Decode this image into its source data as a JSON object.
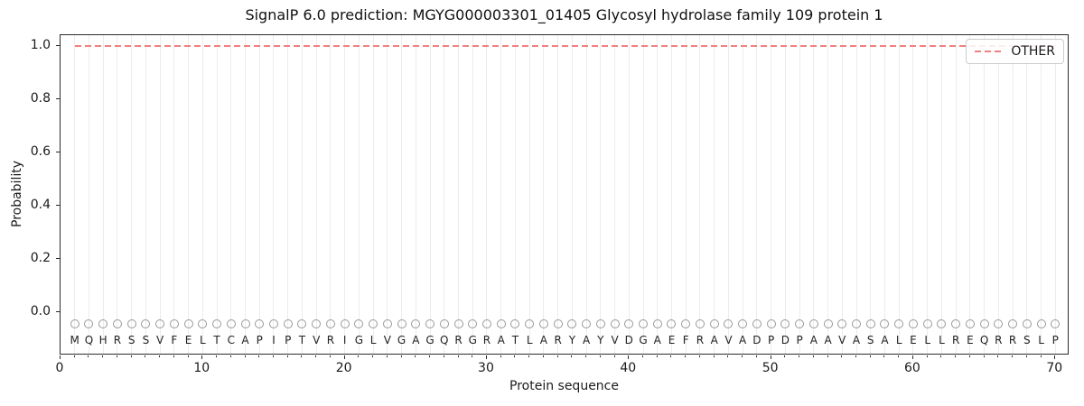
{
  "title": "SignalP 6.0 prediction: MGYG000003301_01405 Glycosyl hydrolase family 109 protein 1",
  "colors": {
    "line": "#f08080",
    "marker": "#999999",
    "letter": "#222222",
    "gridline": "#ececec",
    "spine": "#2b2b2b",
    "text": "#1a1a1a",
    "legend_border": "#cccccc"
  },
  "chart_data": {
    "type": "line",
    "title": "SignalP 6.0 prediction: MGYG000003301_01405 Glycosyl hydrolase family 109 protein 1",
    "xlabel": "Protein sequence",
    "ylabel": "Probability",
    "xlim": [
      0,
      71
    ],
    "ylim": [
      -0.16,
      1.04
    ],
    "x_ticks": [
      0,
      10,
      20,
      30,
      40,
      50,
      60,
      70
    ],
    "y_ticks": [
      0.0,
      0.2,
      0.4,
      0.6,
      0.8,
      1.0
    ],
    "grid": {
      "vertical_per_residue": true,
      "horizontal": false
    },
    "legend": {
      "position": "upper right",
      "entries": [
        "OTHER"
      ]
    },
    "series": [
      {
        "name": "OTHER",
        "line_style": "dashed",
        "color": "#f08080",
        "x_start": 1,
        "x_end": 70,
        "y_constant": 1.0,
        "description": "OTHER probability equals 1.0 for every residue 1-70"
      }
    ],
    "sequence": "MQHRSSVFELTCAPIPTVRIGLVGAGQRGRATLARYAYVDGAEFRAVADPDPAAVASALELLREQRRSLP",
    "sequence_markers": {
      "shape": "open-circle",
      "y": -0.045,
      "color": "#999999"
    }
  }
}
